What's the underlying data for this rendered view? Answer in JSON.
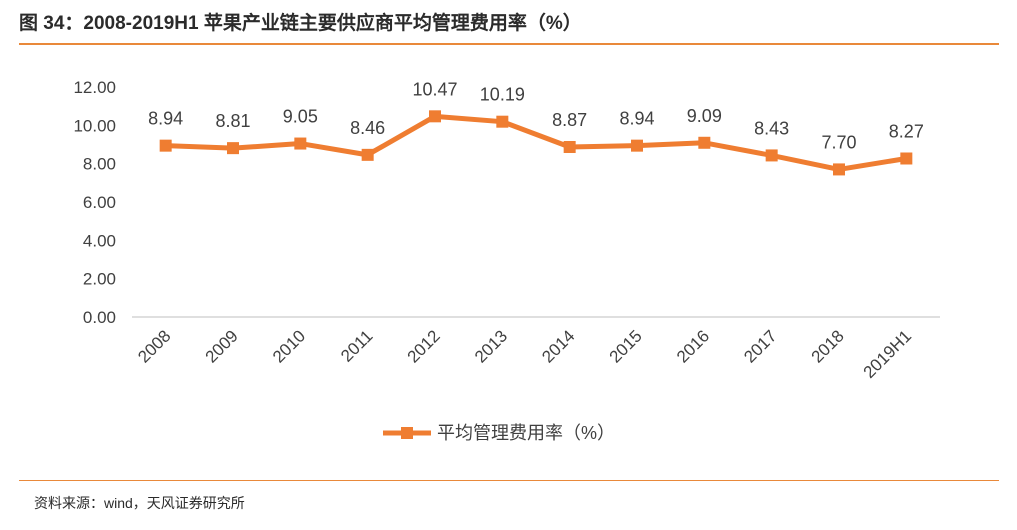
{
  "figure": {
    "title": "图 34：2008-2019H1 苹果产业链主要供应商平均管理费用率（%）",
    "source": "资料来源：wind，天风证券研究所"
  },
  "colors": {
    "accent": "#e9893a",
    "series": "#ef7d31"
  },
  "chart_data": {
    "type": "line",
    "title": "",
    "xlabel": "",
    "ylabel": "",
    "categories": [
      "2008",
      "2009",
      "2010",
      "2011",
      "2012",
      "2013",
      "2014",
      "2015",
      "2016",
      "2017",
      "2018",
      "2019H1"
    ],
    "series": [
      {
        "name": "平均管理费用率（%）",
        "values": [
          8.94,
          8.81,
          9.05,
          8.46,
          10.47,
          10.19,
          8.87,
          8.94,
          9.09,
          8.43,
          7.7,
          8.27
        ],
        "labels": [
          "8.94",
          "8.81",
          "9.05",
          "8.46",
          "10.47",
          "10.19",
          "8.87",
          "8.94",
          "9.09",
          "8.43",
          "7.70",
          "8.27"
        ]
      }
    ],
    "ylim": [
      0,
      12
    ],
    "yticks": [
      "0.00",
      "2.00",
      "4.00",
      "6.00",
      "8.00",
      "10.00",
      "12.00"
    ],
    "grid": false,
    "legend": "bottom",
    "marker": "square"
  }
}
